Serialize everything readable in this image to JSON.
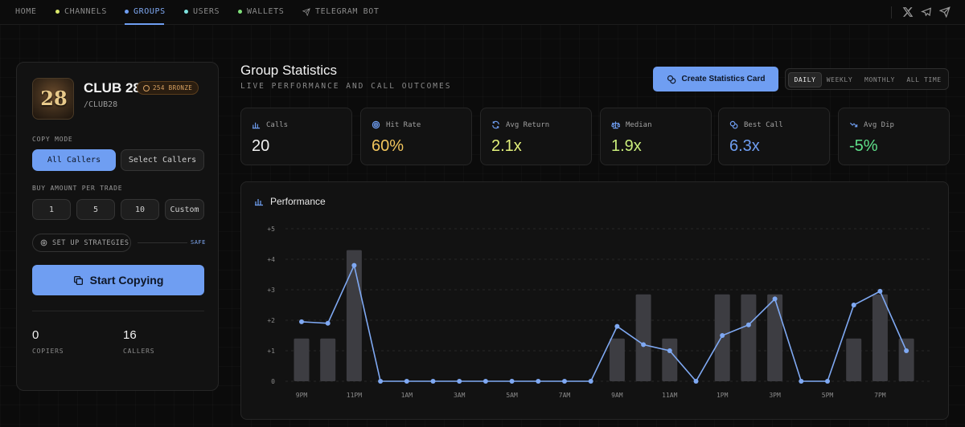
{
  "nav": {
    "items": [
      {
        "label": "HOME",
        "dot": ""
      },
      {
        "label": "CHANNELS",
        "dot": "#d9e86a"
      },
      {
        "label": "GROUPS",
        "dot": "#6f9ef2"
      },
      {
        "label": "USERS",
        "dot": "#7ee3e0"
      },
      {
        "label": "WALLETS",
        "dot": "#7fe07a"
      },
      {
        "label": "TELEGRAM BOT",
        "dot": ""
      }
    ],
    "active": "GROUPS",
    "icons": [
      "x-icon",
      "telegram-icon",
      "send-icon"
    ]
  },
  "group": {
    "name": "CLUB 28",
    "badge": "254 BRONZE",
    "handle": "/CLUB28",
    "avatar_text": "28"
  },
  "copy_mode": {
    "label": "COPY MODE",
    "options": [
      "All Callers",
      "Select Callers"
    ],
    "selected": "All Callers"
  },
  "buy_amount": {
    "label": "BUY AMOUNT PER TRADE",
    "options": [
      "1",
      "5",
      "10",
      "Custom"
    ]
  },
  "strategies": {
    "label": "SET UP STRATEGIES",
    "tag": "SAFE"
  },
  "start_button": "Start Copying",
  "stats": {
    "copiers": {
      "value": "0",
      "label": "COPIERS"
    },
    "callers": {
      "value": "16",
      "label": "CALLERS"
    }
  },
  "header": {
    "title": "Group Statistics",
    "subtitle": "LIVE PERFORMANCE AND CALL OUTCOMES",
    "create_button": "Create Statistics Card",
    "periods": [
      "DAILY",
      "WEEKLY",
      "MONTHLY",
      "ALL TIME"
    ],
    "selected_period": "DAILY"
  },
  "cards": [
    {
      "label": "Calls",
      "value": "20",
      "color": "#f0f0f0",
      "icon": "bar-chart-icon"
    },
    {
      "label": "Hit Rate",
      "value": "60%",
      "color": "#f2c55c",
      "icon": "target-icon"
    },
    {
      "label": "Avg Return",
      "value": "2.1x",
      "color": "#e2f07a",
      "icon": "refresh-icon"
    },
    {
      "label": "Median",
      "value": "1.9x",
      "color": "#c8ec7a",
      "icon": "scale-icon"
    },
    {
      "label": "Best Call",
      "value": "6.3x",
      "color": "#6f9ef2",
      "icon": "coins-icon"
    },
    {
      "label": "Avg Dip",
      "value": "-5%",
      "color": "#5fe08a",
      "icon": "trend-down-icon"
    }
  ],
  "chart": {
    "title": "Performance"
  },
  "chart_data": {
    "type": "bar",
    "categories": [
      "9PM",
      "10PM",
      "11PM",
      "12AM",
      "1AM",
      "2AM",
      "3AM",
      "4AM",
      "5AM",
      "6AM",
      "7AM",
      "8AM",
      "9AM",
      "10AM",
      "11AM",
      "12PM",
      "1PM",
      "2PM",
      "3PM",
      "4PM",
      "5PM",
      "6PM",
      "7PM",
      "8PM"
    ],
    "tick_labels": [
      "9PM",
      "11PM",
      "1AM",
      "3AM",
      "5AM",
      "7AM",
      "9AM",
      "11AM",
      "1PM",
      "3PM",
      "5PM",
      "7PM"
    ],
    "y_ticks": [
      "0",
      "+1",
      "+2",
      "+3",
      "+4",
      "+5"
    ],
    "ylim": [
      0,
      5
    ],
    "series": [
      {
        "type": "bar",
        "values": [
          1.4,
          1.4,
          4.3,
          0,
          0,
          0,
          0,
          0,
          0,
          0,
          0,
          0,
          1.4,
          2.85,
          1.4,
          0,
          2.85,
          2.85,
          2.85,
          0,
          0,
          1.4,
          2.85,
          1.4
        ]
      },
      {
        "type": "line",
        "values": [
          1.95,
          1.9,
          3.8,
          0,
          0,
          0,
          0,
          0,
          0,
          0,
          0,
          0,
          1.8,
          1.2,
          1.0,
          0,
          1.5,
          1.85,
          2.7,
          0,
          0,
          2.5,
          2.95,
          1.0
        ]
      }
    ],
    "bar_color": "#3d3d42",
    "line_color": "#7fa9f3",
    "grid": true
  }
}
